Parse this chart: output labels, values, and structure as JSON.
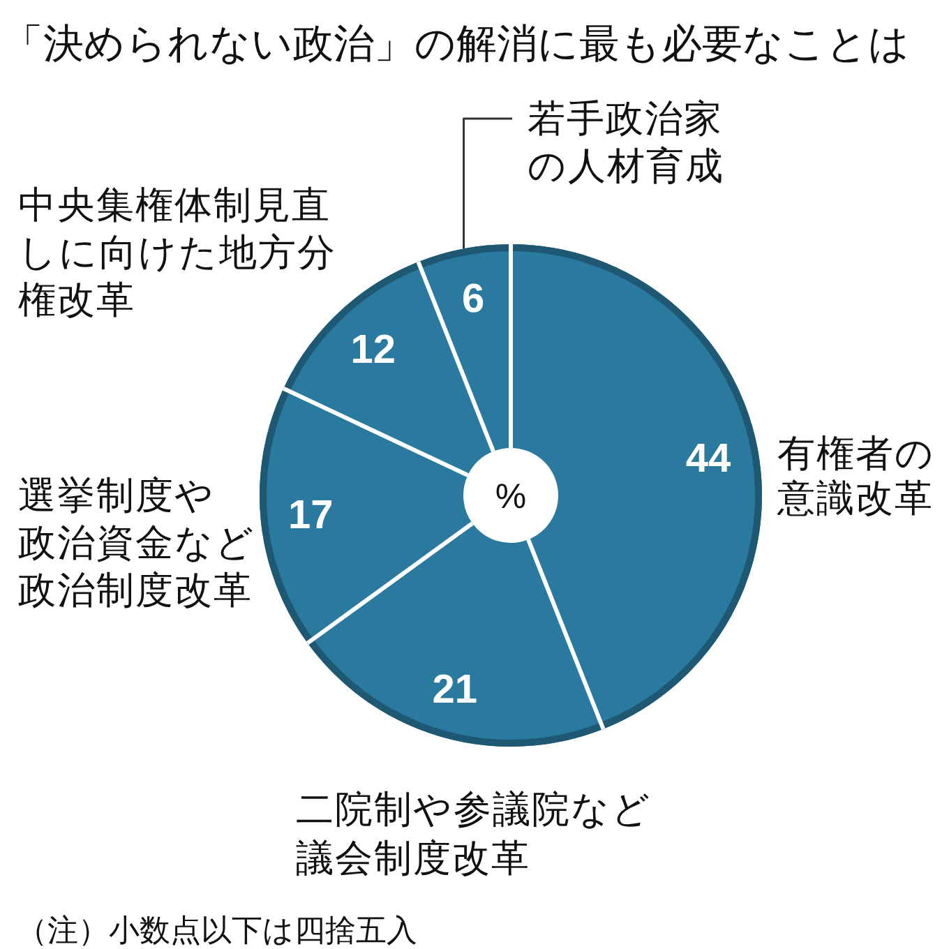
{
  "chart_data": {
    "type": "donut",
    "title": "「決められない政治」の解消に最も必要なことは",
    "categories": [
      "有権者の意識改革",
      "二院制や参議院など議会制度改革",
      "選挙制度や政治資金など政治制度改革",
      "中央集権体制見直しに向けた地方分権改革",
      "若手政治家の人材育成"
    ],
    "values": [
      44,
      21,
      17,
      12,
      6
    ],
    "colors": [
      "#2a7aa0",
      "#2a7aa0",
      "#2a7aa0",
      "#2a7aa0",
      "#2a7aa0"
    ],
    "data_labels": true,
    "annotations": [
      "%",
      "（注）小数点以下は四捨五入"
    ]
  }
}
